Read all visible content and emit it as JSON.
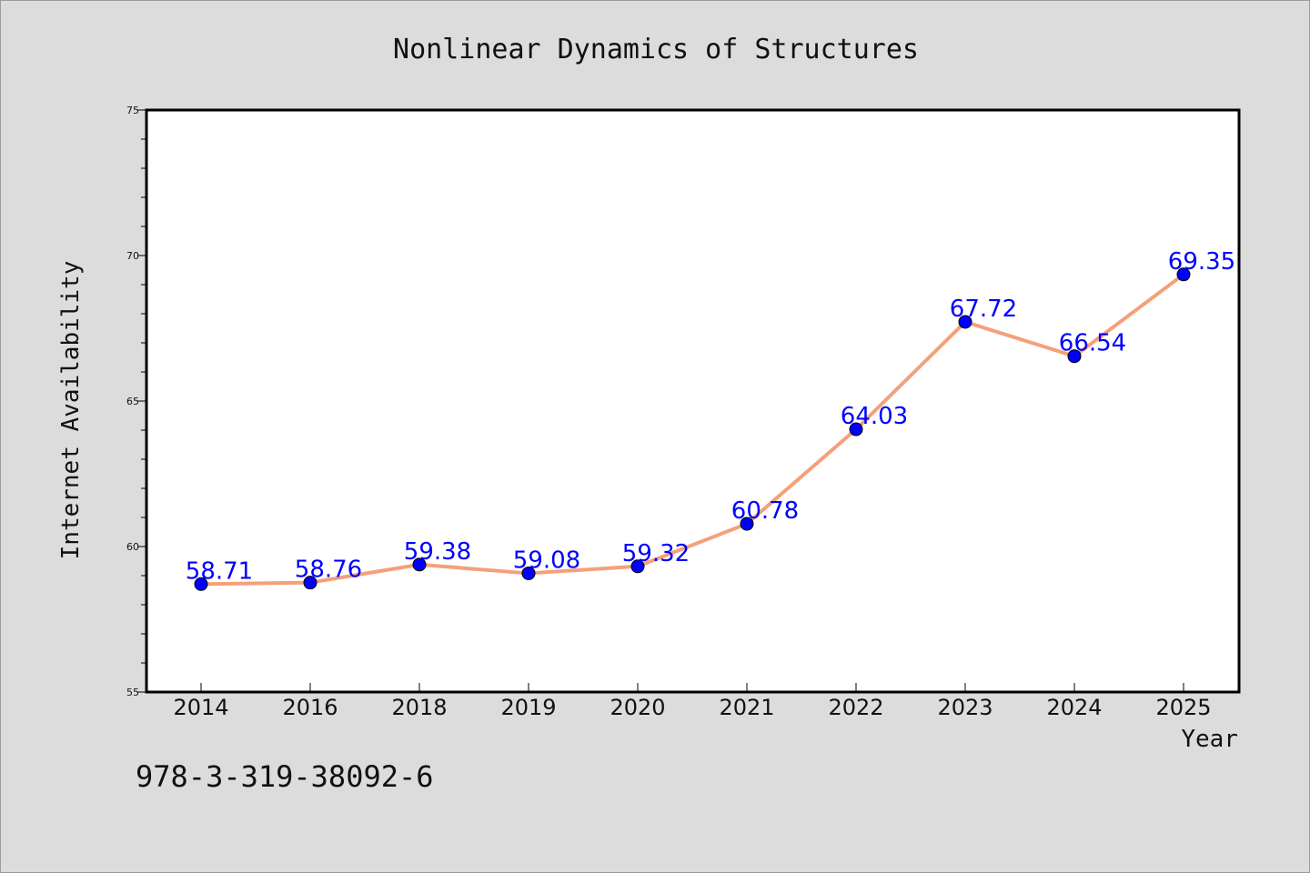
{
  "chart_data": {
    "type": "line",
    "title": "Nonlinear Dynamics of Structures",
    "xlabel": "Year",
    "ylabel": "Internet Availability",
    "categories": [
      "2014",
      "2016",
      "2018",
      "2019",
      "2020",
      "2021",
      "2022",
      "2023",
      "2024",
      "2025"
    ],
    "values": [
      58.71,
      58.76,
      59.38,
      59.08,
      59.32,
      60.78,
      64.03,
      67.72,
      66.54,
      69.35
    ],
    "data_labels": [
      "58.71",
      "58.76",
      "59.38",
      "59.08",
      "59.32",
      "60.78",
      "64.03",
      "67.72",
      "66.54",
      "69.35"
    ],
    "ylim": [
      55,
      75
    ],
    "yticks": [
      55,
      60,
      65,
      70,
      75
    ],
    "ytick_labels": [
      "55",
      "60",
      "65",
      "70",
      "75"
    ],
    "grid": false,
    "line_color": "#f4a07a",
    "marker_color": "#0000ff",
    "label_color": "#0000ff"
  },
  "footer": {
    "isbn": "978-3-319-38092-6"
  },
  "colors": {
    "background": "#dcdcdc",
    "plot_background": "#ffffff"
  }
}
